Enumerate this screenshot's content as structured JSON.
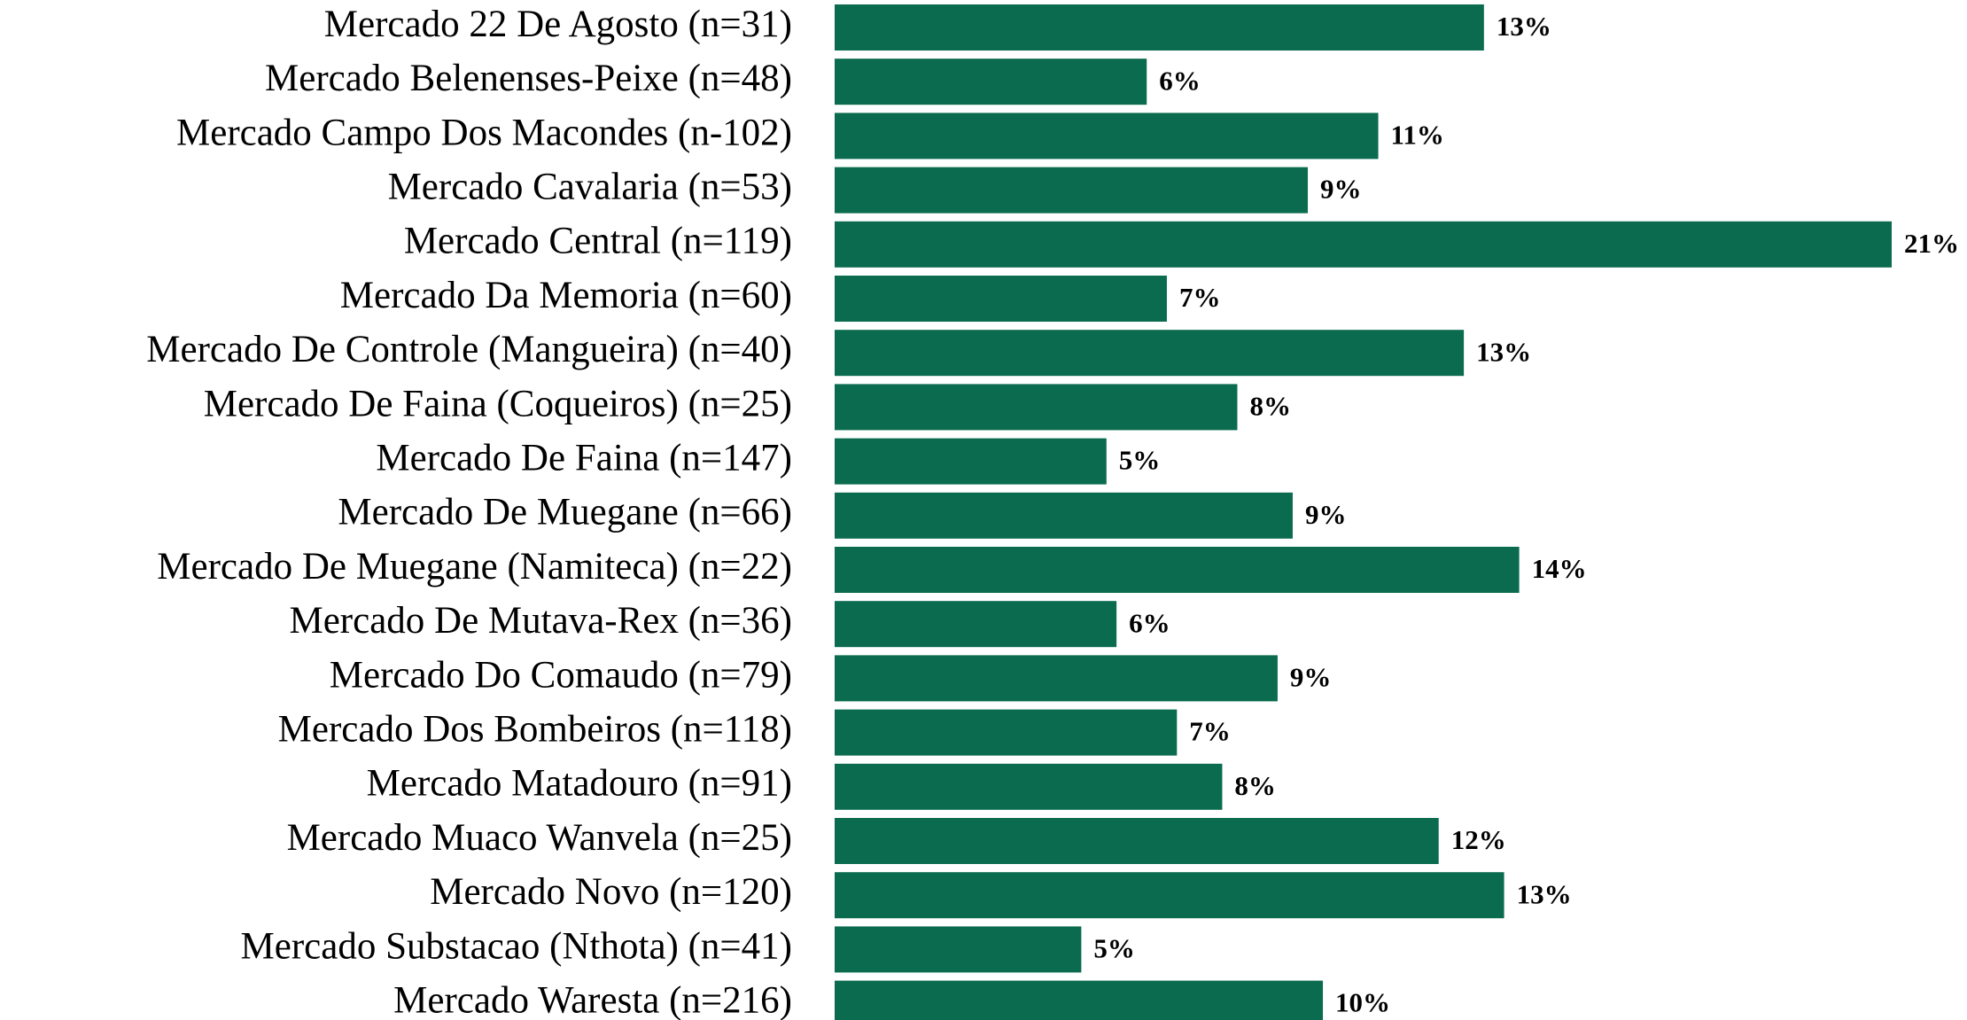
{
  "chart_data": {
    "type": "barh",
    "categories": [
      "Mercado 22 De Agosto (n=31)",
      "Mercado Belenenses-Peixe (n=48)",
      "Mercado Campo Dos Macondes (n-102)",
      "Mercado Cavalaria (n=53)",
      "Mercado Central (n=119)",
      "Mercado Da Memoria (n=60)",
      "Mercado De Controle (Mangueira) (n=40)",
      "Mercado De Faina (Coqueiros) (n=25)",
      "Mercado De Faina (n=147)",
      "Mercado De Muegane (n=66)",
      "Mercado De Muegane (Namiteca) (n=22)",
      "Mercado De Mutava-Rex (n=36)",
      "Mercado Do Comaudo (n=79)",
      "Mercado Dos Bombeiros (n=118)",
      "Mercado Matadouro (n=91)",
      "Mercado Muaco Wanvela (n=25)",
      "Mercado Novo (n=120)",
      "Mercado Substacao (Nthota) (n=41)",
      "Mercado Waresta (n=216)"
    ],
    "values": [
      12.9,
      6.2,
      10.8,
      9.4,
      21.0,
      6.6,
      12.5,
      8.0,
      5.4,
      9.1,
      13.6,
      5.6,
      8.8,
      6.8,
      7.7,
      12.0,
      13.3,
      4.9,
      9.7
    ],
    "value_labels": [
      "13%",
      "6%",
      "11%",
      "9%",
      "21%",
      "7%",
      "13%",
      "8%",
      "5%",
      "9%",
      "14%",
      "6%",
      "9%",
      "7%",
      "8%",
      "12%",
      "13%",
      "5%",
      "10%"
    ],
    "color": "#0a6b4e",
    "xlim": [
      0,
      21
    ]
  }
}
